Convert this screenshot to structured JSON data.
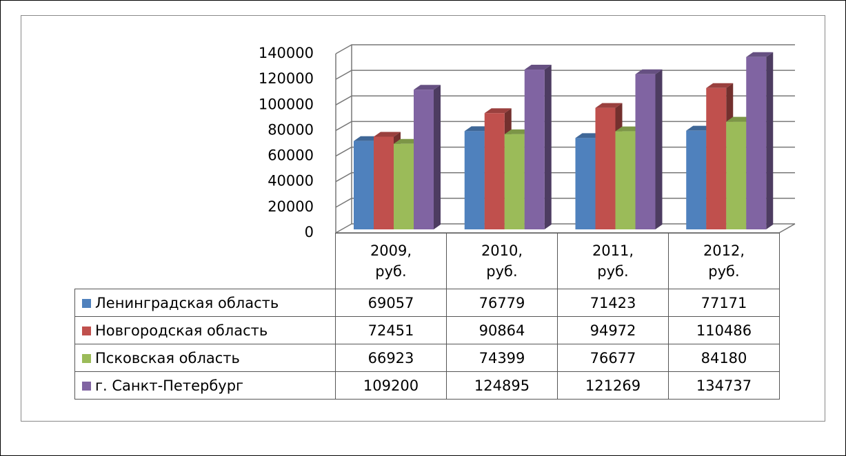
{
  "chart_data": {
    "type": "bar",
    "categories": [
      "2009, руб.",
      "2010, руб.",
      "2011, руб.",
      "2012, руб."
    ],
    "series": [
      {
        "name": "Ленинградская область",
        "color": "#4f81bd",
        "values": [
          69057,
          76779,
          71423,
          77171
        ]
      },
      {
        "name": "Новгородская область",
        "color": "#c0504d",
        "values": [
          72451,
          90864,
          94972,
          110486
        ]
      },
      {
        "name": "Псковская область",
        "color": "#9bbb59",
        "values": [
          66923,
          74399,
          76677,
          84180
        ]
      },
      {
        "name": "г. Санкт-Петербург",
        "color": "#8064a2",
        "values": [
          109200,
          124895,
          121269,
          134737
        ]
      }
    ],
    "ylim": [
      0,
      140000
    ],
    "yticks": [
      0,
      20000,
      40000,
      60000,
      80000,
      100000,
      120000,
      140000
    ],
    "grid": true
  }
}
